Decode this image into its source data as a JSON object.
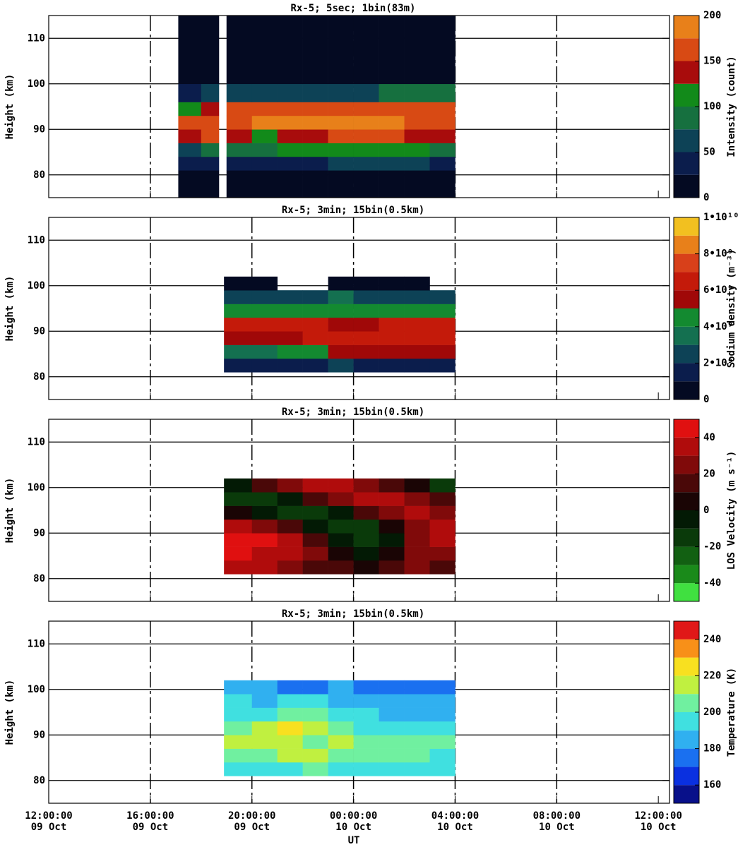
{
  "chart_data": [
    {
      "type": "heatmap",
      "title": "Rx-5;  5sec; 1bin(83m)",
      "ylabel": "Height (km)",
      "xlim": [
        0,
        24.44
      ],
      "xticks": [
        0,
        4,
        8,
        12,
        16,
        20,
        24
      ],
      "ylim": [
        75,
        115
      ],
      "yticks": [
        80,
        90,
        100,
        110
      ],
      "heatmap": {
        "x": [
          5.1,
          6.0,
          6.7,
          7.0,
          8,
          9,
          10,
          11,
          12,
          13,
          14,
          15,
          16
        ],
        "y": [
          75,
          81,
          84,
          87,
          90,
          93,
          96,
          100,
          115
        ],
        "z": [
          [
            10,
            10,
            null,
            10,
            10,
            10,
            10,
            10,
            10,
            10,
            10,
            10
          ],
          [
            30,
            30,
            null,
            40,
            40,
            40,
            45,
            50,
            60,
            50,
            50,
            40
          ],
          [
            60,
            80,
            null,
            90,
            90,
            100,
            110,
            110,
            120,
            110,
            100,
            90
          ],
          [
            130,
            150,
            null,
            130,
            120,
            130,
            140,
            150,
            160,
            150,
            140,
            140
          ],
          [
            150,
            170,
            null,
            170,
            175,
            180,
            180,
            185,
            180,
            175,
            170,
            170
          ],
          [
            120,
            140,
            null,
            170,
            165,
            165,
            160,
            150,
            150,
            150,
            150,
            150
          ],
          [
            40,
            60,
            null,
            70,
            70,
            70,
            70,
            70,
            70,
            80,
            80,
            90
          ],
          [
            10,
            10,
            null,
            10,
            10,
            10,
            10,
            10,
            10,
            10,
            10,
            10
          ]
        ]
      },
      "colorbar": {
        "label": "Intensity (count)",
        "bounds": [
          0,
          25,
          50,
          75,
          100,
          125,
          150,
          175,
          200
        ],
        "colors": [
          "#040a22",
          "#0b1d4c",
          "#0d4256",
          "#16703f",
          "#128a1a",
          "#a80c0c",
          "#d84a14",
          "#e8801a",
          "#f5c518"
        ],
        "ticks": [
          0,
          50,
          100,
          150,
          200
        ]
      }
    },
    {
      "type": "heatmap",
      "title": "Rx-5; 3min; 15bin(0.5km)",
      "ylabel": "Height (km)",
      "xlim": [
        0,
        24.44
      ],
      "xticks": [
        0,
        4,
        8,
        12,
        16,
        20,
        24
      ],
      "ylim": [
        75,
        115
      ],
      "yticks": [
        80,
        90,
        100,
        110
      ],
      "heatmap": {
        "x": [
          6.9,
          8,
          9,
          10,
          11,
          12,
          13,
          14,
          15,
          16
        ],
        "y": [
          81,
          84,
          87,
          90,
          93,
          96,
          99,
          102
        ],
        "z": [
          [
            1000000000.0,
            1000000000.0,
            1000000000.0,
            1500000000.0,
            2000000000.0,
            1500000000.0,
            1000000000.0,
            1000000000.0,
            1000000000.0
          ],
          [
            3000000000.0,
            3500000000.0,
            4000000000.0,
            4500000000.0,
            5500000000.0,
            5000000000.0,
            5000000000.0,
            5500000000.0,
            5000000000.0
          ],
          [
            5000000000.0,
            5000000000.0,
            5500000000.0,
            6000000000.0,
            6500000000.0,
            6500000000.0,
            6000000000.0,
            6500000000.0,
            6000000000.0
          ],
          [
            6500000000.0,
            6500000000.0,
            6000000000.0,
            6000000000.0,
            5500000000.0,
            5500000000.0,
            6000000000.0,
            6000000000.0,
            6000000000.0
          ],
          [
            4000000000.0,
            4000000000.0,
            4500000000.0,
            4500000000.0,
            4500000000.0,
            4000000000.0,
            4500000000.0,
            4500000000.0,
            4000000000.0
          ],
          [
            2000000000.0,
            2000000000.0,
            2500000000.0,
            2500000000.0,
            3000000000.0,
            2500000000.0,
            2500000000.0,
            2500000000.0,
            2000000000.0
          ],
          [
            500000000.0,
            500000000.0,
            null,
            null,
            500000000.0,
            500000000.0,
            500000000.0,
            500000000.0,
            null
          ]
        ]
      },
      "colorbar": {
        "label": "Sodium density (m⁻³)",
        "bounds": [
          0,
          1000000000.0,
          2000000000.0,
          3000000000.0,
          4000000000.0,
          5000000000.0,
          6000000000.0,
          7000000000.0,
          8000000000.0,
          9000000000.0,
          10000000000.0
        ],
        "colors": [
          "#040a22",
          "#0b1d4c",
          "#0d4256",
          "#147050",
          "#138a30",
          "#a00808",
          "#c41a0a",
          "#d8401a",
          "#e8801a",
          "#f2c020"
        ],
        "ticks": [
          0,
          {
            "value": 2000000000.0,
            "label": "2•10⁹"
          },
          {
            "value": 4000000000.0,
            "label": "4•10⁹"
          },
          {
            "value": 6000000000.0,
            "label": "6•10⁹"
          },
          {
            "value": 8000000000.0,
            "label": "8•10⁹"
          },
          {
            "value": 10000000000.0,
            "label": "1•10¹⁰"
          }
        ]
      }
    },
    {
      "type": "heatmap",
      "title": "Rx-5; 3min; 15bin(0.5km)",
      "ylabel": "Height (km)",
      "xlim": [
        0,
        24.44
      ],
      "xticks": [
        0,
        4,
        8,
        12,
        16,
        20,
        24
      ],
      "ylim": [
        75,
        115
      ],
      "yticks": [
        80,
        90,
        100,
        110
      ],
      "heatmap": {
        "x": [
          6.9,
          8,
          9,
          10,
          11,
          12,
          13,
          14,
          15,
          16
        ],
        "y": [
          81,
          84,
          87,
          90,
          93,
          96,
          99,
          102
        ],
        "z": [
          [
            30,
            30,
            20,
            10,
            10,
            0,
            10,
            20,
            10
          ],
          [
            40,
            30,
            30,
            20,
            0,
            -10,
            0,
            20,
            20
          ],
          [
            40,
            40,
            30,
            10,
            -10,
            -20,
            -10,
            20,
            30
          ],
          [
            30,
            20,
            10,
            -10,
            -20,
            -20,
            0,
            20,
            30
          ],
          [
            0,
            -10,
            -20,
            -20,
            -10,
            10,
            20,
            30,
            20
          ],
          [
            -20,
            -20,
            -10,
            10,
            20,
            30,
            30,
            20,
            10
          ],
          [
            -10,
            10,
            20,
            30,
            30,
            20,
            10,
            0,
            -20
          ]
        ]
      },
      "colorbar": {
        "label": "LOS Velocity (m s⁻¹)",
        "bounds": [
          -50,
          -40,
          -30,
          -20,
          -10,
          0,
          10,
          20,
          30,
          40,
          50
        ],
        "colors": [
          "#40e040",
          "#1a8a1a",
          "#126012",
          "#0a3a0a",
          "#031a05",
          "#1a0505",
          "#4a0808",
          "#800a0a",
          "#b00c0c",
          "#e01010"
        ],
        "ticks": [
          -40,
          -20,
          0,
          20,
          40
        ]
      }
    },
    {
      "type": "heatmap",
      "title": "Rx-5; 3min; 15bin(0.5km)",
      "ylabel": "Height (km)",
      "xlabel": "UT",
      "xlim": [
        0,
        24.44
      ],
      "xticks": [
        {
          "value": 0,
          "label": "12:00:00",
          "sublabel": "09 Oct"
        },
        {
          "value": 4,
          "label": "16:00:00",
          "sublabel": "09 Oct"
        },
        {
          "value": 8,
          "label": "20:00:00",
          "sublabel": "09 Oct"
        },
        {
          "value": 12,
          "label": "00:00:00",
          "sublabel": "10 Oct"
        },
        {
          "value": 16,
          "label": "04:00:00",
          "sublabel": "10 Oct"
        },
        {
          "value": 20,
          "label": "08:00:00",
          "sublabel": "10 Oct"
        },
        {
          "value": 24,
          "label": "12:00:00",
          "sublabel": "10 Oct"
        }
      ],
      "ylim": [
        75,
        115
      ],
      "yticks": [
        80,
        90,
        100,
        110
      ],
      "heatmap": {
        "x": [
          6.9,
          8,
          9,
          10,
          11,
          12,
          13,
          14,
          15,
          16
        ],
        "y": [
          81,
          84,
          87,
          90,
          93,
          96,
          99,
          102
        ],
        "z": [
          [
            190,
            195,
            190,
            200,
            190,
            190,
            195,
            190,
            190
          ],
          [
            205,
            205,
            210,
            210,
            205,
            200,
            205,
            200,
            195
          ],
          [
            215,
            210,
            210,
            205,
            210,
            205,
            205,
            200,
            200
          ],
          [
            205,
            215,
            220,
            210,
            200,
            195,
            195,
            190,
            190
          ],
          [
            190,
            195,
            200,
            205,
            195,
            190,
            185,
            185,
            185
          ],
          [
            190,
            185,
            190,
            190,
            185,
            185,
            185,
            180,
            185
          ],
          [
            180,
            180,
            175,
            175,
            180,
            175,
            170,
            175,
            175
          ]
        ]
      },
      "colorbar": {
        "label": "Temperature (K)",
        "bounds": [
          150,
          160,
          170,
          180,
          190,
          200,
          210,
          220,
          230,
          240,
          250
        ],
        "colors": [
          "#08108a",
          "#0a30e0",
          "#1a70f0",
          "#30b0f0",
          "#40e0e0",
          "#70f0a0",
          "#c0f040",
          "#f8e020",
          "#f89018",
          "#e01818"
        ],
        "ticks": [
          160,
          180,
          200,
          220,
          240
        ]
      }
    }
  ]
}
